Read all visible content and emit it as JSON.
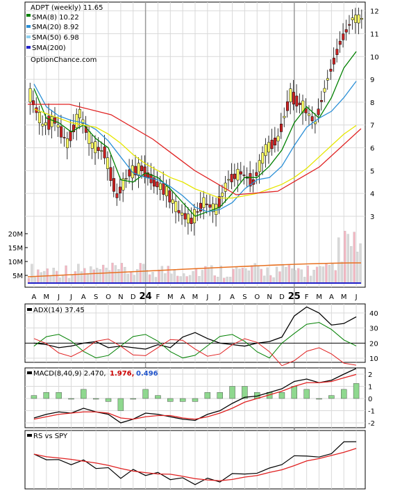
{
  "colors": {
    "sma8": "#008000",
    "sma20": "#2a8fd6",
    "sma50": "#e6e600",
    "sma200": "#2222cc",
    "sma200_long": "#e02020",
    "up_candle": "#ffff66",
    "down_candle": "#cc2222",
    "vol_up": "#d8d8d8",
    "vol_down": "#f4b6c2",
    "grid": "#d9d9d9",
    "macd_line": "#000000",
    "signal_line": "#e02020",
    "hist": "#8fd88f",
    "adx_plus": "#008000",
    "adx_minus": "#e02020"
  },
  "price_panel": {
    "title": "ADPT (weekly) 11.65",
    "legend": [
      {
        "label": "SMA(8) 10.22",
        "color_key": "sma8"
      },
      {
        "label": "SMA(20) 8.92",
        "color_key": "sma20"
      },
      {
        "label": "SMA(50) 6.98",
        "color_key": "sma50"
      },
      {
        "label": "SMA(200)",
        "color_key": "sma200"
      }
    ],
    "watermark": "OptionChance.com",
    "y_ticks": [
      "12",
      "11",
      "10",
      "9",
      "8",
      "7",
      "6",
      "5",
      "4",
      "3"
    ],
    "vol_ticks": [
      "20M",
      "15M",
      "10M",
      "5M"
    ]
  },
  "x_axis": {
    "labels": [
      "A",
      "M",
      "J",
      "J",
      "A",
      "S",
      "O",
      "N",
      "D",
      "24",
      "F",
      "M",
      "A",
      "M",
      "J",
      "J",
      "A",
      "S",
      "O",
      "N",
      "D",
      "25",
      "F",
      "M",
      "A",
      "M",
      "J"
    ]
  },
  "adx_panel": {
    "title": "ADX(14) 37.45",
    "y_ticks": [
      "40",
      "30",
      "20",
      "10"
    ]
  },
  "macd_panel": {
    "title": "MACD(8,40,9) 2.470,",
    "value_red": "1.976,",
    "value_blue": "0.496",
    "y_ticks": [
      "2",
      "1",
      "0",
      "-1",
      "-2"
    ]
  },
  "rs_panel": {
    "title": "RS vs SPY"
  },
  "chart_data": [
    {
      "type": "line",
      "title": "ADPT (weekly) 11.65",
      "x": [
        "A",
        "M",
        "J",
        "J",
        "A",
        "S",
        "O",
        "N",
        "D",
        "24",
        "F",
        "M",
        "A",
        "M",
        "J",
        "J",
        "A",
        "S",
        "O",
        "N",
        "D",
        "25",
        "F",
        "M",
        "A",
        "M",
        "J"
      ],
      "ylim": [
        2.3,
        12.6
      ],
      "series": [
        {
          "name": "ADPT",
          "values": [
            8.3,
            7.0,
            7.2,
            6.2,
            7.5,
            6.1,
            5.8,
            3.9,
            4.9,
            5.1,
            4.5,
            4.1,
            3.2,
            2.8,
            3.6,
            3.3,
            4.6,
            4.9,
            4.5,
            5.9,
            6.4,
            8.3,
            7.8,
            7.1,
            9.0,
            10.6,
            11.65
          ]
        },
        {
          "name": "SMA(8) 10.22",
          "values": [
            8.6,
            7.3,
            7.1,
            6.7,
            7.0,
            6.4,
            6.0,
            4.6,
            4.5,
            4.9,
            4.7,
            4.2,
            3.6,
            3.0,
            3.2,
            3.4,
            4.0,
            4.7,
            4.7,
            5.2,
            5.9,
            7.1,
            7.8,
            7.3,
            8.2,
            9.5,
            10.22
          ]
        },
        {
          "name": "SMA(20) 8.92",
          "values": [
            8.8,
            7.8,
            7.4,
            7.2,
            7.1,
            6.8,
            6.3,
            5.6,
            4.9,
            4.7,
            4.6,
            4.3,
            3.9,
            3.4,
            3.2,
            3.3,
            3.6,
            4.2,
            4.6,
            4.7,
            5.2,
            6.1,
            6.9,
            7.3,
            7.6,
            8.2,
            8.92
          ]
        },
        {
          "name": "SMA(50) 6.98",
          "values": [
            7.7,
            7.5,
            7.3,
            7.1,
            7.0,
            6.9,
            6.6,
            6.2,
            5.7,
            5.3,
            5.0,
            4.7,
            4.5,
            4.2,
            4.0,
            3.8,
            3.8,
            3.9,
            4.0,
            4.2,
            4.4,
            4.7,
            5.1,
            5.6,
            6.1,
            6.6,
            6.98
          ]
        }
      ],
      "ylabel": ""
    },
    {
      "type": "line",
      "title": "ADX(14) 37.45",
      "ylim": [
        5,
        45
      ],
      "series": [
        {
          "name": "ADX(14) 37.45",
          "values": [
            20,
            19,
            17,
            18,
            20,
            21,
            17,
            18,
            17,
            16,
            19,
            17,
            24,
            27,
            23,
            20,
            19,
            18,
            20,
            21,
            24,
            38,
            44,
            40,
            32,
            33,
            37.45
          ]
        }
      ]
    },
    {
      "type": "line",
      "title": "MACD(8,40,9) 2.470,",
      "ylim": [
        -2.5,
        2.7
      ],
      "series": [
        {
          "name": "MACD",
          "values": [
            -1.6,
            -1.3,
            -1.1,
            -1.2,
            -0.8,
            -1.1,
            -1.3,
            -2.0,
            -1.7,
            -1.2,
            -1.3,
            -1.5,
            -1.7,
            -1.8,
            -1.3,
            -1.0,
            -0.4,
            0.1,
            0.2,
            0.5,
            0.8,
            1.4,
            1.6,
            1.3,
            1.5,
            2.0,
            2.47
          ]
        },
        {
          "name": "Signal",
          "values": [
            -1.7,
            -1.5,
            -1.3,
            -1.2,
            -1.1,
            -1.1,
            -1.2,
            -1.6,
            -1.7,
            -1.5,
            -1.4,
            -1.4,
            -1.6,
            -1.7,
            -1.5,
            -1.2,
            -0.8,
            -0.3,
            0.0,
            0.3,
            0.6,
            1.0,
            1.3,
            1.3,
            1.4,
            1.7,
            1.976
          ]
        }
      ]
    },
    {
      "type": "line",
      "title": "RS vs SPY",
      "series": [
        {
          "name": "RS vs SPY",
          "values": [
            0.6,
            0.5,
            0.48,
            0.42,
            0.46,
            0.36,
            0.3,
            0.18,
            0.26,
            0.24,
            0.2,
            0.16,
            0.1,
            0.06,
            0.1,
            0.1,
            0.2,
            0.24,
            0.22,
            0.34,
            0.4,
            0.56,
            0.58,
            0.52,
            0.64,
            0.8,
            0.88
          ]
        }
      ]
    }
  ]
}
